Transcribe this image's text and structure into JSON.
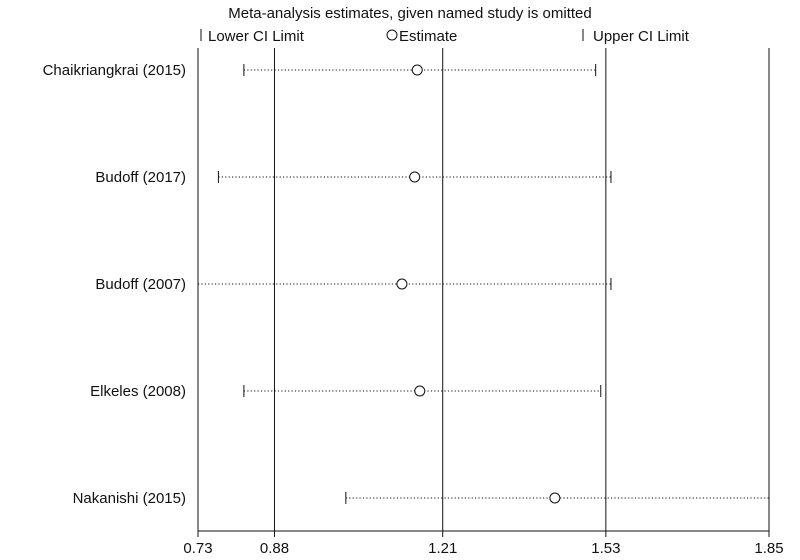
{
  "chart_data": {
    "type": "forest",
    "title": "Meta-analysis estimates, given named study is omitted",
    "legend": {
      "placement": "top",
      "lower_label": "Lower CI Limit",
      "estimate_label": "Estimate",
      "upper_label": "Upper CI Limit"
    },
    "studies": [
      "Chaikriangkrai (2015)",
      "Budoff (2017)",
      "Budoff (2007)",
      "Elkeles (2008)",
      "Nakanishi (2015)"
    ],
    "estimates": [
      1.16,
      1.155,
      1.13,
      1.165,
      1.43
    ],
    "lower": [
      0.82,
      0.77,
      0.73,
      0.82,
      1.02
    ],
    "upper": [
      1.51,
      1.54,
      1.54,
      1.52,
      1.85
    ],
    "x_ticks": [
      0.73,
      0.88,
      1.21,
      1.53,
      1.85
    ],
    "x_tick_labels": [
      "0.73",
      "0.88",
      "1.21",
      "1.53",
      "1.85"
    ],
    "xlim": [
      0.73,
      1.85
    ],
    "reference_lines": [
      0.88,
      1.21,
      1.53
    ],
    "grid": false,
    "colors": {
      "line": "#111111",
      "background": "#ffffff"
    }
  }
}
